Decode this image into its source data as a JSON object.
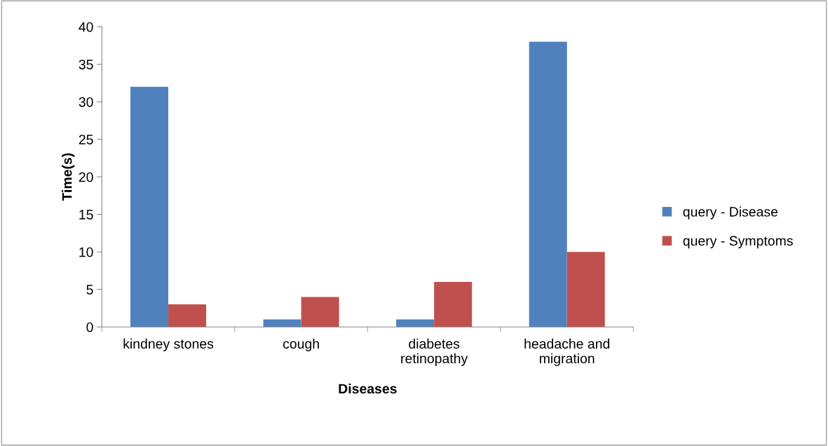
{
  "chart_data": {
    "type": "bar",
    "xlabel": "Diseases",
    "ylabel": "Time(s)",
    "categories": [
      "kindney stones",
      "cough",
      "diabetes\nretinopathy",
      "headache and\nmigration"
    ],
    "series": [
      {
        "name": "query - Disease",
        "color": "#4f81bd",
        "values": [
          32,
          1,
          1,
          38
        ]
      },
      {
        "name": "query - Symptoms",
        "color": "#c0504d",
        "values": [
          3,
          4,
          6,
          10
        ]
      }
    ],
    "ylim": [
      0,
      40
    ],
    "yticks": [
      0,
      5,
      10,
      15,
      20,
      25,
      30,
      35,
      40
    ],
    "grid": false,
    "legend": "right"
  }
}
